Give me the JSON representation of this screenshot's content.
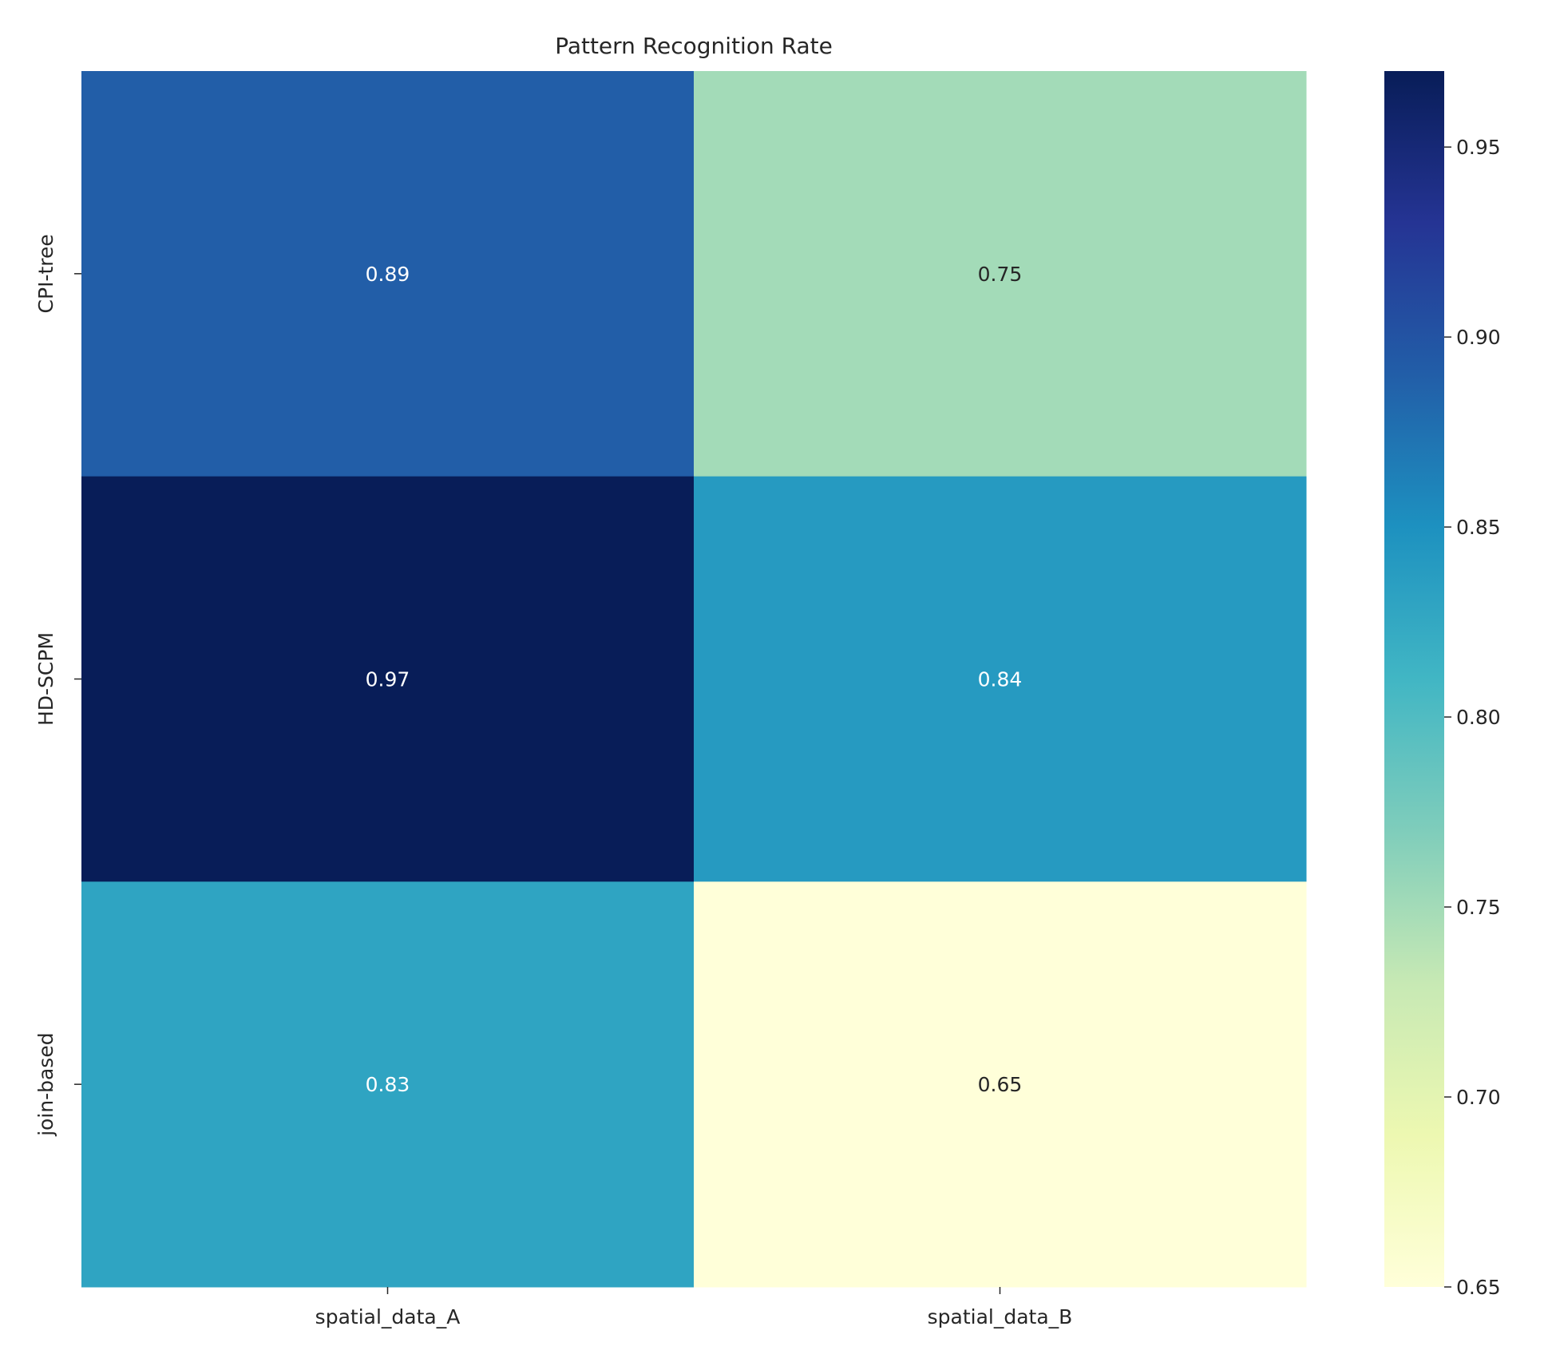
{
  "chart_data": {
    "type": "heatmap",
    "title": "Pattern Recognition Rate",
    "xlabel": "",
    "ylabel": "",
    "x_categories": [
      "spatial_data_A",
      "spatial_data_B"
    ],
    "y_categories": [
      "CPI-tree",
      "HD-SCPM",
      "join-based"
    ],
    "values": [
      [
        0.89,
        0.75
      ],
      [
        0.97,
        0.84
      ],
      [
        0.83,
        0.65
      ]
    ],
    "value_labels": [
      [
        "0.89",
        "0.75"
      ],
      [
        "0.97",
        "0.84"
      ],
      [
        "0.83",
        "0.65"
      ]
    ],
    "colormap": "YlGnBu",
    "colorbar": {
      "range": [
        0.65,
        0.97
      ],
      "ticks": [
        0.65,
        0.7,
        0.75,
        0.8,
        0.85,
        0.9,
        0.95
      ],
      "tick_labels": [
        "0.65",
        "0.70",
        "0.75",
        "0.80",
        "0.85",
        "0.90",
        "0.95"
      ]
    },
    "annotation_colors": {
      "dark": "#262626",
      "light": "#ffffff"
    }
  }
}
